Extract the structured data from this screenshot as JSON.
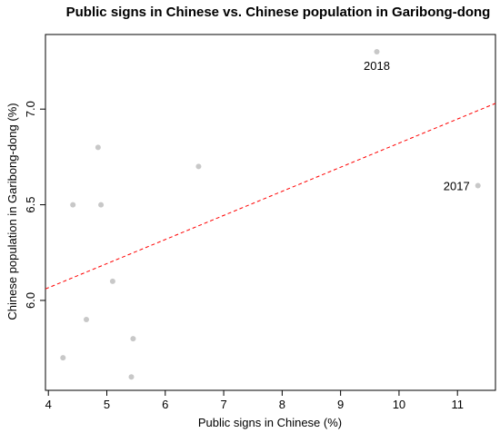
{
  "chart_data": {
    "type": "scatter",
    "title": "Public signs in Chinese vs. Chinese population in Garibong-dong",
    "xlabel": "Public signs in Chinese (%)",
    "ylabel": "Chinese population in Garibong-dong (%)",
    "xlim": [
      3.95,
      11.65
    ],
    "ylim": [
      5.53,
      7.39
    ],
    "xticks": [
      4,
      5,
      6,
      7,
      8,
      9,
      10,
      11
    ],
    "yticks": [
      6.0,
      6.5,
      7.0
    ],
    "ytick_labels": [
      "6.0",
      "6.5",
      "7.0"
    ],
    "grid": false,
    "points": [
      {
        "x": 4.25,
        "y": 5.7
      },
      {
        "x": 4.42,
        "y": 6.5
      },
      {
        "x": 4.65,
        "y": 5.9
      },
      {
        "x": 4.85,
        "y": 6.8
      },
      {
        "x": 4.9,
        "y": 6.5
      },
      {
        "x": 5.1,
        "y": 6.1
      },
      {
        "x": 5.42,
        "y": 5.6
      },
      {
        "x": 5.45,
        "y": 5.8
      },
      {
        "x": 6.57,
        "y": 6.7
      },
      {
        "x": 9.62,
        "y": 7.3
      },
      {
        "x": 11.35,
        "y": 6.6
      }
    ],
    "annotations": [
      {
        "text": "2018",
        "x": 9.62,
        "y": 7.3
      },
      {
        "text": "2017",
        "x": 11.35,
        "y": 6.6
      }
    ],
    "trendline": {
      "x1": 3.95,
      "y1": 6.06,
      "x2": 11.65,
      "y2": 7.03
    },
    "colors": {
      "point": "#c8c8c8",
      "trendline": "#ff0000"
    }
  }
}
